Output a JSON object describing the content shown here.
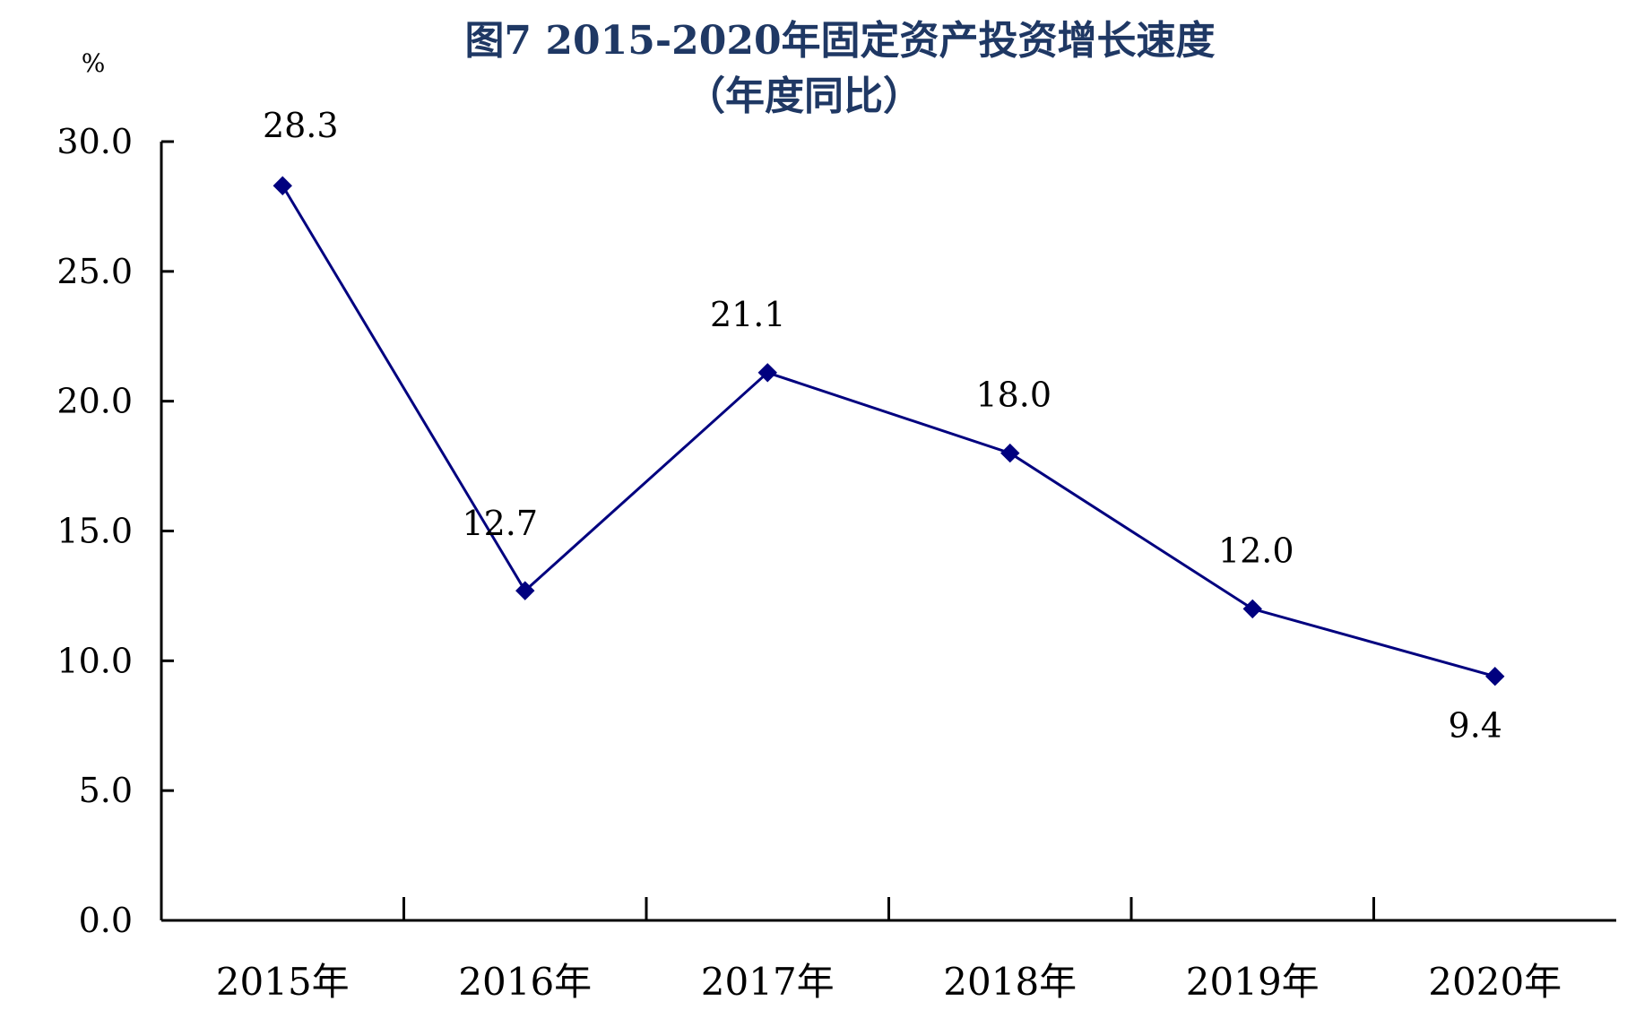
{
  "chart_data": {
    "type": "line",
    "title": "图7 2015-2020年固定资产投资增长速度",
    "subtitle": "（年度同比）",
    "ylabel": "%",
    "xlabel": "",
    "ylim": [
      0,
      30
    ],
    "yticks": [
      "0.0",
      "5.0",
      "10.0",
      "15.0",
      "20.0",
      "25.0",
      "30.0"
    ],
    "categories": [
      "2015年",
      "2016年",
      "2017年",
      "2018年",
      "2019年",
      "2020年"
    ],
    "series": [
      {
        "values": [
          28.3,
          12.7,
          21.1,
          18.0,
          12.0,
          9.4
        ],
        "labels": [
          "28.3",
          "12.7",
          "21.1",
          "18.0",
          "12.0",
          "9.4"
        ],
        "color": "#00007f",
        "marker": "diamond"
      }
    ],
    "grid": false,
    "legend": "none"
  }
}
